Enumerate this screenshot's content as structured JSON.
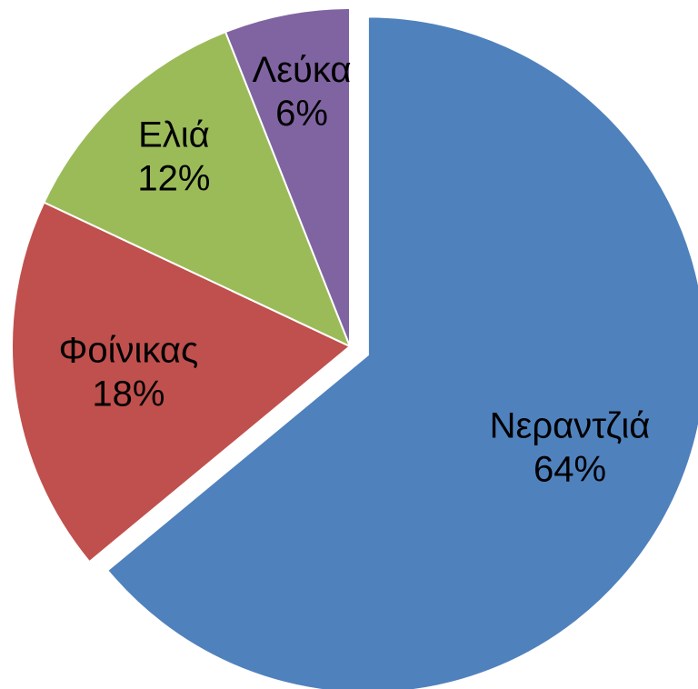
{
  "chart_data": {
    "type": "pie",
    "categories": [
      "Νεραντζιά",
      "Φοίνικας",
      "Ελιά",
      "Λεύκα"
    ],
    "values": [
      64,
      18,
      12,
      6
    ],
    "value_labels": [
      "64%",
      "18%",
      "12%",
      "6%"
    ],
    "colors": [
      "#4f81bd",
      "#c0504d",
      "#9bbb59",
      "#8064a2"
    ],
    "explode": [
      true,
      false,
      false,
      false
    ]
  }
}
